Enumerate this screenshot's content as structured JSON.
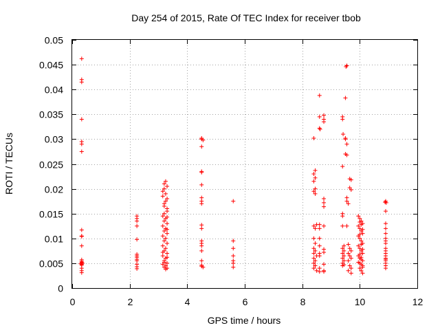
{
  "chart_data": {
    "type": "scatter",
    "title": "Day 254 of 2015, Rate Of TEC Index for receiver tbob",
    "xlabel": "GPS time / hours",
    "ylabel": "ROTI / TECUs",
    "xlim": [
      0,
      12
    ],
    "ylim": [
      0,
      0.05
    ],
    "x_ticks": [
      0,
      2,
      4,
      6,
      8,
      10,
      12
    ],
    "x_tick_labels": [
      "0",
      "2",
      "4",
      "6",
      "8",
      "10",
      "12"
    ],
    "y_ticks": [
      0,
      0.005,
      0.01,
      0.015,
      0.02,
      0.025,
      0.03,
      0.035,
      0.04,
      0.045,
      0.05
    ],
    "y_tick_labels": [
      "0",
      "0.005",
      "0.01",
      "0.015",
      "0.02",
      "0.025",
      "0.03",
      "0.035",
      "0.04",
      "0.045",
      "0.05"
    ],
    "grid": true,
    "marker": "+",
    "color": "#ff0000",
    "series": [
      {
        "name": "ROTI",
        "points": [
          [
            0.33,
            0.0462
          ],
          [
            0.33,
            0.042
          ],
          [
            0.33,
            0.0415
          ],
          [
            0.33,
            0.034
          ],
          [
            0.33,
            0.0295
          ],
          [
            0.33,
            0.029
          ],
          [
            0.33,
            0.0275
          ],
          [
            0.33,
            0.0117
          ],
          [
            0.33,
            0.0105
          ],
          [
            0.33,
            0.0104
          ],
          [
            0.33,
            0.0085
          ],
          [
            0.33,
            0.0057
          ],
          [
            0.33,
            0.0054
          ],
          [
            0.33,
            0.0052
          ],
          [
            0.33,
            0.005
          ],
          [
            0.33,
            0.0048
          ],
          [
            0.33,
            0.0046
          ],
          [
            0.33,
            0.004
          ],
          [
            0.33,
            0.0035
          ],
          [
            0.33,
            0.0031
          ],
          [
            0.36,
            0.005
          ],
          [
            0.3,
            0.0049
          ],
          [
            2.25,
            0.0145
          ],
          [
            2.25,
            0.014
          ],
          [
            2.25,
            0.0135
          ],
          [
            2.25,
            0.0125
          ],
          [
            2.25,
            0.0098
          ],
          [
            2.25,
            0.0068
          ],
          [
            2.25,
            0.0065
          ],
          [
            2.25,
            0.0062
          ],
          [
            2.25,
            0.0058
          ],
          [
            2.25,
            0.0055
          ],
          [
            2.25,
            0.0048
          ],
          [
            2.25,
            0.0043
          ],
          [
            2.25,
            0.0039
          ],
          [
            3.15,
            0.0195
          ],
          [
            3.2,
            0.021
          ],
          [
            3.25,
            0.0215
          ],
          [
            3.3,
            0.0205
          ],
          [
            3.15,
            0.0185
          ],
          [
            3.25,
            0.0175
          ],
          [
            3.2,
            0.0165
          ],
          [
            3.3,
            0.0155
          ],
          [
            3.15,
            0.0145
          ],
          [
            3.25,
            0.014
          ],
          [
            3.2,
            0.0135
          ],
          [
            3.3,
            0.013
          ],
          [
            3.15,
            0.0125
          ],
          [
            3.25,
            0.012
          ],
          [
            3.2,
            0.0115
          ],
          [
            3.3,
            0.011
          ],
          [
            3.15,
            0.0105
          ],
          [
            3.25,
            0.01
          ],
          [
            3.2,
            0.0095
          ],
          [
            3.3,
            0.009
          ],
          [
            3.15,
            0.0085
          ],
          [
            3.25,
            0.008
          ],
          [
            3.2,
            0.0075
          ],
          [
            3.3,
            0.007
          ],
          [
            3.15,
            0.0065
          ],
          [
            3.25,
            0.006
          ],
          [
            3.2,
            0.0055
          ],
          [
            3.3,
            0.005
          ],
          [
            3.15,
            0.0048
          ],
          [
            3.25,
            0.0045
          ],
          [
            3.2,
            0.0042
          ],
          [
            3.3,
            0.004
          ],
          [
            3.25,
            0.0038
          ],
          [
            3.2,
            0.02
          ],
          [
            3.25,
            0.019
          ],
          [
            3.3,
            0.018
          ],
          [
            3.2,
            0.017
          ],
          [
            3.3,
            0.016
          ],
          [
            3.2,
            0.015
          ],
          [
            3.3,
            0.0143
          ],
          [
            3.3,
            0.0118
          ],
          [
            3.15,
            0.0072
          ],
          [
            3.3,
            0.0062
          ],
          [
            3.2,
            0.0052
          ],
          [
            4.5,
            0.0302
          ],
          [
            4.5,
            0.03
          ],
          [
            4.55,
            0.0298
          ],
          [
            4.5,
            0.0285
          ],
          [
            4.5,
            0.0235
          ],
          [
            4.5,
            0.0233
          ],
          [
            4.5,
            0.0208
          ],
          [
            4.5,
            0.0182
          ],
          [
            4.5,
            0.0175
          ],
          [
            4.5,
            0.017
          ],
          [
            4.5,
            0.0127
          ],
          [
            4.5,
            0.012
          ],
          [
            4.5,
            0.0095
          ],
          [
            4.5,
            0.009
          ],
          [
            4.5,
            0.0085
          ],
          [
            4.5,
            0.0075
          ],
          [
            4.5,
            0.0055
          ],
          [
            4.5,
            0.0046
          ],
          [
            4.5,
            0.0044
          ],
          [
            4.55,
            0.0042
          ],
          [
            5.6,
            0.0175
          ],
          [
            5.6,
            0.0095
          ],
          [
            5.6,
            0.008
          ],
          [
            5.6,
            0.0065
          ],
          [
            5.6,
            0.0055
          ],
          [
            5.6,
            0.005
          ],
          [
            5.6,
            0.0042
          ],
          [
            8.4,
            0.0302
          ],
          [
            8.45,
            0.0237
          ],
          [
            8.4,
            0.023
          ],
          [
            8.45,
            0.0222
          ],
          [
            8.4,
            0.0215
          ],
          [
            8.45,
            0.02
          ],
          [
            8.4,
            0.0195
          ],
          [
            8.45,
            0.019
          ],
          [
            8.4,
            0.0125
          ],
          [
            8.5,
            0.0128
          ],
          [
            8.45,
            0.012
          ],
          [
            8.4,
            0.01
          ],
          [
            8.45,
            0.009
          ],
          [
            8.4,
            0.008
          ],
          [
            8.45,
            0.0075
          ],
          [
            8.4,
            0.007
          ],
          [
            8.5,
            0.0065
          ],
          [
            8.4,
            0.006
          ],
          [
            8.45,
            0.0055
          ],
          [
            8.4,
            0.005
          ],
          [
            8.45,
            0.0045
          ],
          [
            8.4,
            0.004
          ],
          [
            8.5,
            0.0035
          ],
          [
            8.6,
            0.0388
          ],
          [
            8.6,
            0.0345
          ],
          [
            8.6,
            0.0322
          ],
          [
            8.62,
            0.032
          ],
          [
            8.6,
            0.0128
          ],
          [
            8.6,
            0.012
          ],
          [
            8.6,
            0.01
          ],
          [
            8.6,
            0.0085
          ],
          [
            8.6,
            0.007
          ],
          [
            8.6,
            0.0065
          ],
          [
            8.6,
            0.004
          ],
          [
            8.6,
            0.0033
          ],
          [
            8.75,
            0.0348
          ],
          [
            8.75,
            0.034
          ],
          [
            8.75,
            0.0335
          ],
          [
            8.75,
            0.018
          ],
          [
            8.75,
            0.0172
          ],
          [
            8.75,
            0.0164
          ],
          [
            8.75,
            0.0125
          ],
          [
            8.75,
            0.0078
          ],
          [
            8.75,
            0.0072
          ],
          [
            8.75,
            0.0048
          ],
          [
            8.75,
            0.0035
          ],
          [
            8.75,
            0.0033
          ],
          [
            9.4,
            0.0345
          ],
          [
            9.4,
            0.034
          ],
          [
            9.42,
            0.031
          ],
          [
            9.4,
            0.0245
          ],
          [
            9.4,
            0.015
          ],
          [
            9.4,
            0.0145
          ],
          [
            9.4,
            0.0125
          ],
          [
            9.45,
            0.0085
          ],
          [
            9.4,
            0.008
          ],
          [
            9.45,
            0.0075
          ],
          [
            9.4,
            0.007
          ],
          [
            9.45,
            0.0065
          ],
          [
            9.4,
            0.006
          ],
          [
            9.45,
            0.0055
          ],
          [
            9.4,
            0.005
          ],
          [
            9.45,
            0.0047
          ],
          [
            9.4,
            0.0045
          ],
          [
            9.55,
            0.0448
          ],
          [
            9.52,
            0.0446
          ],
          [
            9.5,
            0.0383
          ],
          [
            9.5,
            0.0302
          ],
          [
            9.5,
            0.03
          ],
          [
            9.55,
            0.029
          ],
          [
            9.5,
            0.027
          ],
          [
            9.55,
            0.0268
          ],
          [
            9.55,
            0.0182
          ],
          [
            9.55,
            0.0175
          ],
          [
            9.6,
            0.017
          ],
          [
            9.65,
            0.022
          ],
          [
            9.7,
            0.0218
          ],
          [
            9.65,
            0.0202
          ],
          [
            9.7,
            0.0198
          ],
          [
            9.6,
            0.0088
          ],
          [
            9.65,
            0.008
          ],
          [
            9.7,
            0.0075
          ],
          [
            9.6,
            0.007
          ],
          [
            9.65,
            0.0065
          ],
          [
            9.7,
            0.006
          ],
          [
            9.6,
            0.0055
          ],
          [
            9.65,
            0.0045
          ],
          [
            9.7,
            0.004
          ],
          [
            9.6,
            0.0035
          ],
          [
            9.7,
            0.003
          ],
          [
            9.55,
            0.0125
          ],
          [
            9.95,
            0.0145
          ],
          [
            10.0,
            0.014
          ],
          [
            10.05,
            0.0135
          ],
          [
            10.1,
            0.013
          ],
          [
            9.95,
            0.0125
          ],
          [
            10.0,
            0.012
          ],
          [
            10.05,
            0.0115
          ],
          [
            10.1,
            0.011
          ],
          [
            9.95,
            0.0105
          ],
          [
            10.0,
            0.01
          ],
          [
            10.05,
            0.0095
          ],
          [
            10.1,
            0.009
          ],
          [
            9.95,
            0.0085
          ],
          [
            10.0,
            0.008
          ],
          [
            10.05,
            0.0075
          ],
          [
            10.1,
            0.007
          ],
          [
            9.95,
            0.0065
          ],
          [
            10.0,
            0.006
          ],
          [
            10.05,
            0.0058
          ],
          [
            10.1,
            0.0055
          ],
          [
            9.95,
            0.0052
          ],
          [
            10.0,
            0.005
          ],
          [
            10.05,
            0.0048
          ],
          [
            10.1,
            0.0045
          ],
          [
            10.0,
            0.004
          ],
          [
            10.05,
            0.0035
          ],
          [
            10.1,
            0.003
          ],
          [
            10.0,
            0.0133
          ],
          [
            10.05,
            0.0128
          ],
          [
            10.1,
            0.0118
          ],
          [
            10.0,
            0.0108
          ],
          [
            10.05,
            0.0088
          ],
          [
            10.1,
            0.0078
          ],
          [
            10.0,
            0.0068
          ],
          [
            10.05,
            0.0062
          ],
          [
            10.1,
            0.0042
          ],
          [
            10.9,
            0.0175
          ],
          [
            10.88,
            0.0173
          ],
          [
            10.92,
            0.0172
          ],
          [
            10.9,
            0.0155
          ],
          [
            10.9,
            0.013
          ],
          [
            10.9,
            0.012
          ],
          [
            10.9,
            0.011
          ],
          [
            10.9,
            0.01
          ],
          [
            10.9,
            0.0095
          ],
          [
            10.9,
            0.009
          ],
          [
            10.9,
            0.008
          ],
          [
            10.9,
            0.0075
          ],
          [
            10.9,
            0.007
          ],
          [
            10.9,
            0.0065
          ],
          [
            10.9,
            0.006
          ],
          [
            10.9,
            0.0058
          ],
          [
            10.9,
            0.0055
          ],
          [
            10.9,
            0.005
          ],
          [
            10.9,
            0.0045
          ],
          [
            10.9,
            0.004
          ]
        ]
      }
    ]
  }
}
